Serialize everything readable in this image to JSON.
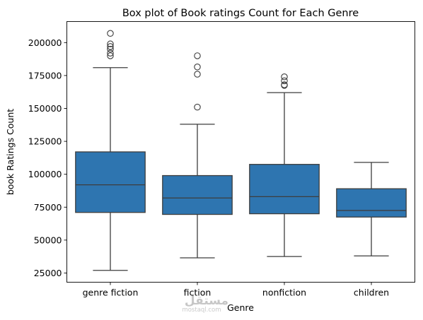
{
  "chart_data": {
    "type": "box",
    "title": "Box plot of Book ratings Count for Each Genre",
    "xlabel": "Genre",
    "ylabel": "book Ratings Count",
    "ylim": [
      18000,
      216000
    ],
    "yticks": [
      25000,
      50000,
      75000,
      100000,
      125000,
      150000,
      175000,
      200000
    ],
    "grid": false,
    "box_color": "#2e75b0",
    "line_color": "#3d3d3d",
    "categories": [
      "genre fiction",
      "fiction",
      "nonfiction",
      "children"
    ],
    "boxes": [
      {
        "category": "genre fiction",
        "whisker_low": 27000,
        "q1": 71000,
        "median": 92000,
        "q3": 117000,
        "whisker_high": 181000,
        "outliers": [
          190000,
          192000,
          195000,
          197000,
          199000,
          207000
        ]
      },
      {
        "category": "fiction",
        "whisker_low": 36500,
        "q1": 69500,
        "median": 82000,
        "q3": 99000,
        "whisker_high": 138000,
        "outliers": [
          151000,
          176000,
          181500,
          190000
        ]
      },
      {
        "category": "nonfiction",
        "whisker_low": 37500,
        "q1": 70000,
        "median": 83000,
        "q3": 107500,
        "whisker_high": 162000,
        "outliers": [
          167500,
          168000,
          171000,
          174000
        ]
      },
      {
        "category": "children",
        "whisker_low": 38000,
        "q1": 67500,
        "median": 72500,
        "q3": 89000,
        "whisker_high": 109000,
        "outliers": []
      }
    ]
  },
  "watermark": {
    "arabic": "مستقل",
    "latin": "mostaql.com"
  }
}
